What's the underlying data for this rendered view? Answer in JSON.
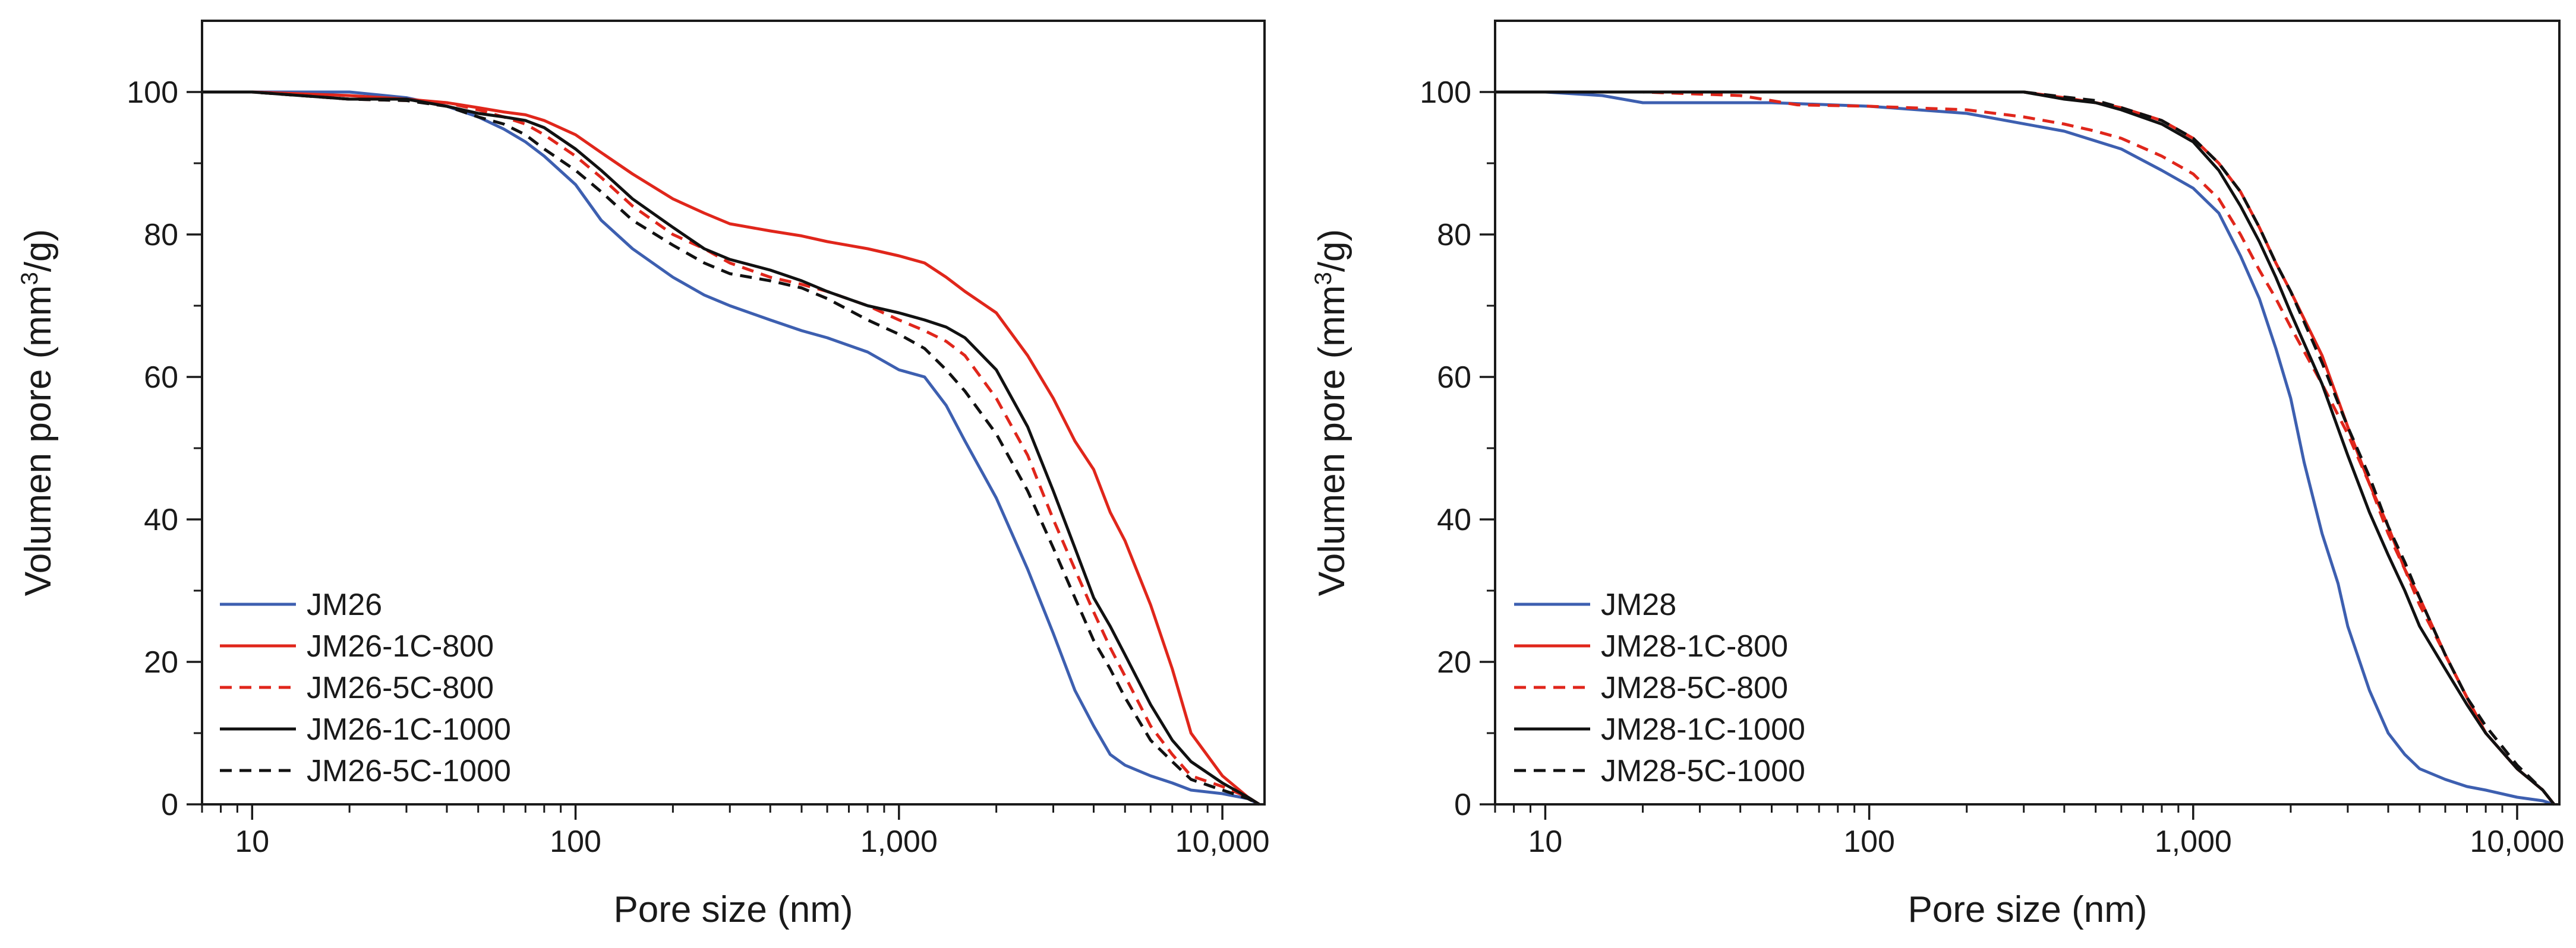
{
  "chart_data": [
    {
      "type": "line",
      "panel": "left",
      "xscale": "log",
      "xlim": [
        7,
        13500
      ],
      "ylim": [
        0,
        110
      ],
      "xlabel": "Pore size (nm)",
      "ylabel": "Volumen pore (mm³/g)",
      "ylabel_parts": {
        "pre": "Volumen pore (mm",
        "sup": "3",
        "post": "/g)"
      },
      "xticks": [
        {
          "value": 10,
          "label": "10"
        },
        {
          "value": 100,
          "label": "100"
        },
        {
          "value": 1000,
          "label": "1,000"
        },
        {
          "value": 10000,
          "label": "10,000"
        }
      ],
      "yticks": [
        {
          "value": 0,
          "label": "0"
        },
        {
          "value": 20,
          "label": "20"
        },
        {
          "value": 40,
          "label": "40"
        },
        {
          "value": 60,
          "label": "60"
        },
        {
          "value": 80,
          "label": "80"
        },
        {
          "value": 100,
          "label": "100"
        }
      ],
      "legend_position": "bottom-left",
      "grid": false,
      "series": [
        {
          "name": "JM26",
          "color": "#3d5fb0",
          "dash": "solid",
          "x": [
            7,
            10,
            20,
            30,
            40,
            50,
            60,
            70,
            80,
            100,
            120,
            150,
            200,
            250,
            300,
            400,
            500,
            600,
            800,
            1000,
            1200,
            1400,
            1600,
            2000,
            2500,
            3000,
            3500,
            4000,
            4500,
            5000,
            6000,
            7000,
            8000,
            10000,
            12000,
            13000
          ],
          "y": [
            100,
            100,
            100,
            99.2,
            98,
            96.5,
            94.8,
            93,
            91,
            87,
            82,
            78,
            74,
            71.5,
            70,
            68,
            66.5,
            65.5,
            63.5,
            61,
            60,
            56,
            51,
            43,
            33,
            24,
            16,
            11,
            7,
            5.5,
            4,
            3,
            2,
            1.5,
            0.8,
            0
          ]
        },
        {
          "name": "JM26-1C-800",
          "color": "#e0261b",
          "dash": "solid",
          "x": [
            7,
            10,
            20,
            30,
            40,
            50,
            60,
            70,
            80,
            100,
            120,
            150,
            200,
            250,
            300,
            400,
            500,
            600,
            800,
            1000,
            1200,
            1400,
            1600,
            2000,
            2500,
            3000,
            3500,
            4000,
            4500,
            5000,
            6000,
            7000,
            8000,
            10000,
            12000,
            13000
          ],
          "y": [
            100,
            100,
            99.5,
            99,
            98.5,
            97.8,
            97.2,
            96.8,
            96,
            94,
            91.5,
            88.5,
            85,
            83,
            81.5,
            80.5,
            79.8,
            79,
            78,
            77,
            76,
            74,
            72,
            69,
            63,
            57,
            51,
            47,
            41,
            37,
            28,
            19,
            10,
            4,
            1,
            0
          ]
        },
        {
          "name": "JM26-5C-800",
          "color": "#e0261b",
          "dash": "dashed",
          "x": [
            7,
            10,
            20,
            30,
            40,
            50,
            60,
            70,
            80,
            100,
            120,
            150,
            200,
            250,
            300,
            400,
            500,
            600,
            800,
            1000,
            1200,
            1400,
            1600,
            2000,
            2500,
            3000,
            3500,
            4000,
            4500,
            5000,
            6000,
            7000,
            8000,
            10000,
            12000,
            13000
          ],
          "y": [
            100,
            100,
            99,
            98.8,
            98.5,
            97.5,
            96.5,
            95.5,
            94,
            91,
            88,
            84,
            80,
            78,
            76,
            74,
            73,
            72,
            70,
            68,
            66.5,
            65,
            63,
            57,
            49,
            40,
            33,
            27,
            22,
            18,
            11,
            7,
            4,
            2.5,
            1,
            0
          ]
        },
        {
          "name": "JM26-1C-1000",
          "color": "#111111",
          "dash": "solid",
          "x": [
            7,
            10,
            20,
            30,
            40,
            50,
            60,
            70,
            80,
            100,
            120,
            150,
            200,
            250,
            300,
            400,
            500,
            600,
            800,
            1000,
            1200,
            1400,
            1600,
            2000,
            2500,
            3000,
            3500,
            4000,
            4500,
            5000,
            6000,
            7000,
            8000,
            10000,
            12000,
            13000
          ],
          "y": [
            100,
            100,
            99,
            99,
            98,
            97,
            96.5,
            96,
            95,
            92,
            89,
            85,
            81,
            78,
            76.5,
            75,
            73.5,
            72,
            70,
            69,
            68,
            67,
            65.5,
            61,
            53,
            44,
            36,
            29,
            25,
            21,
            14,
            9,
            6,
            3,
            1,
            0
          ]
        },
        {
          "name": "JM26-5C-1000",
          "color": "#111111",
          "dash": "dashed",
          "x": [
            7,
            10,
            20,
            30,
            40,
            50,
            60,
            70,
            80,
            100,
            120,
            150,
            200,
            250,
            300,
            400,
            500,
            600,
            800,
            1000,
            1200,
            1400,
            1600,
            2000,
            2500,
            3000,
            3500,
            4000,
            4500,
            5000,
            6000,
            7000,
            8000,
            10000,
            12000,
            13000
          ],
          "y": [
            100,
            100,
            99,
            98.8,
            98,
            96.5,
            95.5,
            94,
            92,
            89,
            86,
            82,
            78.5,
            76,
            74.5,
            73.5,
            72.5,
            71,
            68,
            66,
            64,
            61,
            58,
            52,
            44,
            36,
            29,
            23,
            19,
            15,
            9,
            6,
            3.5,
            2,
            0.8,
            0
          ]
        }
      ]
    },
    {
      "type": "line",
      "panel": "right",
      "xscale": "log",
      "xlim": [
        7,
        13500
      ],
      "ylim": [
        0,
        110
      ],
      "xlabel": "Pore size (nm)",
      "ylabel": "Volumen pore (mm³/g)",
      "ylabel_parts": {
        "pre": "Volumen pore (mm",
        "sup": "3",
        "post": "/g)"
      },
      "xticks": [
        {
          "value": 10,
          "label": "10"
        },
        {
          "value": 100,
          "label": "100"
        },
        {
          "value": 1000,
          "label": "1,000"
        },
        {
          "value": 10000,
          "label": "10,000"
        }
      ],
      "yticks": [
        {
          "value": 0,
          "label": "0"
        },
        {
          "value": 20,
          "label": "20"
        },
        {
          "value": 40,
          "label": "40"
        },
        {
          "value": 60,
          "label": "60"
        },
        {
          "value": 80,
          "label": "80"
        },
        {
          "value": 100,
          "label": "100"
        }
      ],
      "legend_position": "bottom-left",
      "grid": false,
      "series": [
        {
          "name": "JM28",
          "color": "#3d5fb0",
          "dash": "solid",
          "x": [
            7,
            10,
            15,
            20,
            30,
            50,
            100,
            200,
            400,
            600,
            800,
            1000,
            1200,
            1400,
            1600,
            1800,
            2000,
            2200,
            2500,
            2800,
            3000,
            3500,
            4000,
            4500,
            5000,
            6000,
            7000,
            8000,
            10000,
            12000,
            13000
          ],
          "y": [
            100,
            100,
            99.5,
            98.5,
            98.5,
            98.5,
            98,
            97,
            94.5,
            92,
            89,
            86.5,
            83,
            77,
            71,
            64,
            57,
            48,
            38,
            31,
            25,
            16,
            10,
            7,
            5,
            3.5,
            2.5,
            2,
            1,
            0.5,
            0
          ]
        },
        {
          "name": "JM28-1C-800",
          "color": "#e0261b",
          "dash": "solid",
          "x": [
            7,
            10,
            20,
            50,
            100,
            200,
            300,
            400,
            500,
            600,
            800,
            1000,
            1200,
            1400,
            1600,
            1800,
            2000,
            2500,
            3000,
            3500,
            4000,
            4500,
            5000,
            6000,
            7000,
            8000,
            10000,
            12000,
            13000
          ],
          "y": [
            100,
            100,
            100,
            100,
            100,
            100,
            100,
            99.2,
            98.5,
            97.8,
            96,
            93.5,
            90,
            86,
            81,
            76,
            72,
            63,
            53,
            45,
            39,
            33,
            29,
            21,
            15,
            10,
            5,
            2,
            0
          ]
        },
        {
          "name": "JM28-5C-800",
          "color": "#e0261b",
          "dash": "dashed",
          "x": [
            7,
            10,
            20,
            40,
            60,
            100,
            200,
            300,
            400,
            500,
            600,
            800,
            1000,
            1200,
            1400,
            1600,
            1800,
            2000,
            2500,
            3000,
            3500,
            4000,
            4500,
            5000,
            6000,
            7000,
            8000,
            10000,
            12000,
            13000
          ],
          "y": [
            100,
            100,
            100,
            99.5,
            98.2,
            98,
            97.5,
            96.5,
            95.5,
            94.5,
            93.5,
            91,
            88.5,
            85,
            80,
            75,
            71,
            67,
            59,
            52,
            45,
            38,
            33,
            28,
            21,
            15,
            10,
            5,
            2,
            0
          ]
        },
        {
          "name": "JM28-1C-1000",
          "color": "#111111",
          "dash": "solid",
          "x": [
            7,
            10,
            20,
            50,
            100,
            200,
            300,
            400,
            500,
            600,
            800,
            1000,
            1200,
            1400,
            1600,
            1800,
            2000,
            2500,
            3000,
            3500,
            4000,
            4500,
            5000,
            6000,
            7000,
            8000,
            10000,
            12000,
            13000
          ],
          "y": [
            100,
            100,
            100,
            100,
            100,
            100,
            100,
            99,
            98.5,
            97.5,
            95.5,
            93,
            89,
            84,
            79,
            74,
            69,
            59,
            49,
            41,
            35,
            30,
            25,
            19,
            14,
            10,
            5,
            2,
            0
          ]
        },
        {
          "name": "JM28-5C-1000",
          "color": "#111111",
          "dash": "dashed",
          "x": [
            7,
            10,
            20,
            50,
            100,
            200,
            300,
            400,
            500,
            600,
            800,
            1000,
            1200,
            1400,
            1600,
            1800,
            2000,
            2500,
            3000,
            3500,
            4000,
            4500,
            5000,
            6000,
            7000,
            8000,
            10000,
            12000,
            13000
          ],
          "y": [
            100,
            100,
            100,
            100,
            100,
            100,
            100,
            99.3,
            98.8,
            97.8,
            96,
            93.5,
            90,
            86,
            81,
            76,
            72,
            62,
            53,
            46,
            39,
            34,
            29,
            21,
            15,
            11,
            5.5,
            2,
            0
          ]
        }
      ]
    }
  ]
}
